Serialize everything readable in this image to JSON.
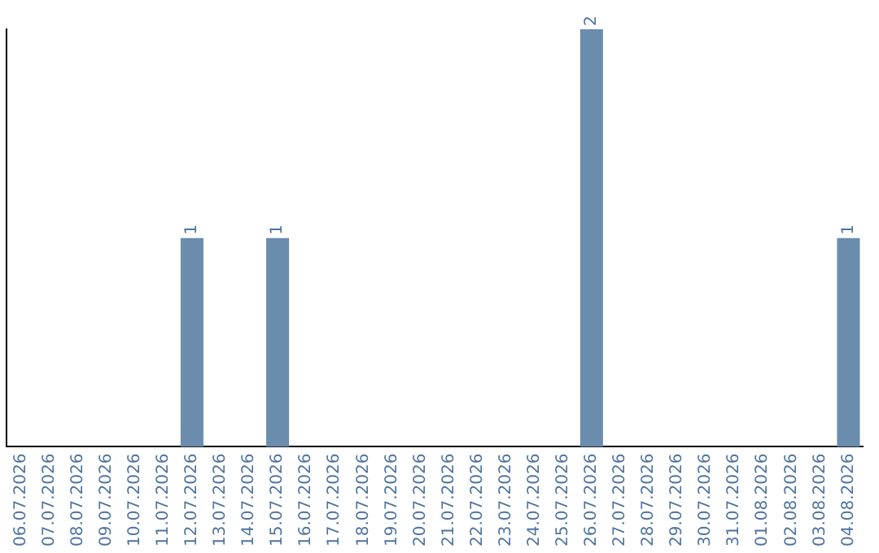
{
  "chart_data": {
    "type": "bar",
    "categories": [
      "06.07.2026",
      "07.07.2026",
      "08.07.2026",
      "09.07.2026",
      "10.07.2026",
      "11.07.2026",
      "12.07.2026",
      "13.07.2026",
      "14.07.2026",
      "15.07.2026",
      "16.07.2026",
      "17.07.2026",
      "18.07.2026",
      "19.07.2026",
      "20.07.2026",
      "21.07.2026",
      "22.07.2026",
      "23.07.2026",
      "24.07.2026",
      "25.07.2026",
      "26.07.2026",
      "27.07.2026",
      "28.07.2026",
      "29.07.2026",
      "30.07.2026",
      "31.07.2026",
      "01.08.2026",
      "02.08.2026",
      "03.08.2026",
      "04.08.2026"
    ],
    "values": [
      0,
      0,
      0,
      0,
      0,
      0,
      1,
      0,
      0,
      1,
      0,
      0,
      0,
      0,
      0,
      0,
      0,
      0,
      0,
      0,
      2,
      0,
      0,
      0,
      0,
      0,
      0,
      0,
      0,
      1
    ],
    "value_labels": [
      null,
      null,
      null,
      null,
      null,
      null,
      "1",
      null,
      null,
      "1",
      null,
      null,
      null,
      null,
      null,
      null,
      null,
      null,
      null,
      null,
      "2",
      null,
      null,
      null,
      null,
      null,
      null,
      null,
      null,
      "1"
    ],
    "color": "#6a8cad",
    "ylim": [
      0,
      2
    ],
    "tick_labels": "x",
    "grid": false,
    "legend": false
  }
}
